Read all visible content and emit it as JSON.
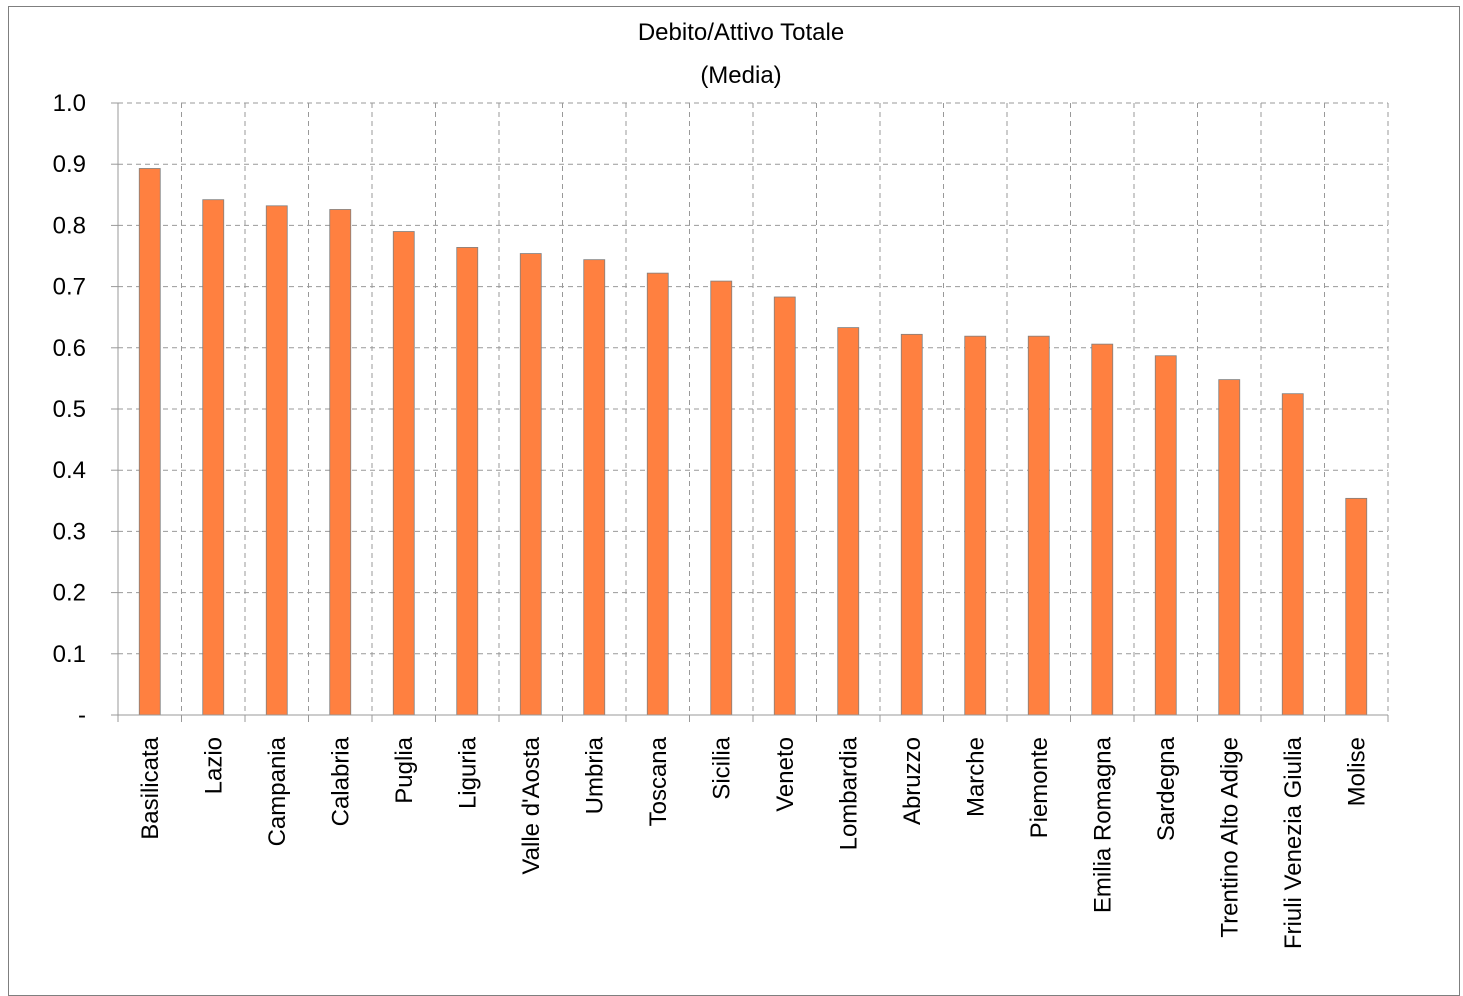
{
  "chart_data": {
    "type": "bar",
    "title": "Debito/Attivo Totale",
    "subtitle": "(Media)",
    "xlabel": "",
    "ylabel": "",
    "ylim": [
      0,
      1.0
    ],
    "yticks": [
      0,
      0.1,
      0.2,
      0.3,
      0.4,
      0.5,
      0.6,
      0.7,
      0.8,
      0.9,
      1.0
    ],
    "ytick_labels": [
      "-",
      "0.1",
      "0.2",
      "0.3",
      "0.4",
      "0.5",
      "0.6",
      "0.7",
      "0.8",
      "0.9",
      "1.0"
    ],
    "grid": true,
    "bar_color": "#FF8040",
    "categories": [
      "Basilicata",
      "Lazio",
      "Campania",
      "Calabria",
      "Puglia",
      "Liguria",
      "Valle d'Aosta",
      "Umbria",
      "Toscana",
      "Sicilia",
      "Veneto",
      "Lombardia",
      "Abruzzo",
      "Marche",
      "Piemonte",
      "Emilia Romagna",
      "Sardegna",
      "Trentino Alto Adige",
      "Friuli Venezia Giulia",
      "Molise"
    ],
    "values": [
      0.893,
      0.842,
      0.832,
      0.826,
      0.79,
      0.764,
      0.754,
      0.744,
      0.722,
      0.709,
      0.683,
      0.633,
      0.622,
      0.619,
      0.619,
      0.606,
      0.587,
      0.548,
      0.525,
      0.354
    ]
  }
}
